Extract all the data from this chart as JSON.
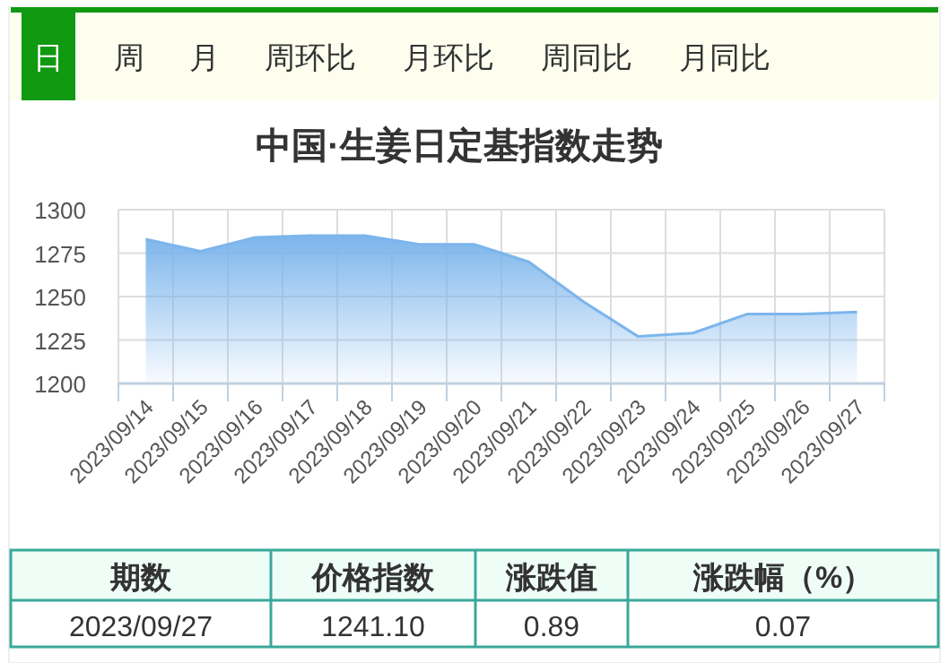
{
  "chart_data": {
    "type": "area",
    "title": "中国·生姜日定基指数走势",
    "categories": [
      "2023/09/14",
      "2023/09/15",
      "2023/09/16",
      "2023/09/17",
      "2023/09/18",
      "2023/09/19",
      "2023/09/20",
      "2023/09/21",
      "2023/09/22",
      "2023/09/23",
      "2023/09/24",
      "2023/09/25",
      "2023/09/26",
      "2023/09/27"
    ],
    "series": [
      {
        "color": "#7cb5ec",
        "values": [
          1283,
          1276,
          1284,
          1285,
          1285,
          1280,
          1280,
          1270,
          1247,
          1227,
          1229,
          1240,
          1240,
          1241.1
        ]
      }
    ],
    "ylim": [
      1200,
      1300
    ],
    "yticks": [
      1200,
      1225,
      1250,
      1275,
      1300
    ],
    "grid": true,
    "annotations": [
      "日",
      "周",
      "月",
      "周环比",
      "月环比",
      "周同比",
      "月同比",
      "期数",
      "价格指数",
      "涨跌值",
      "涨跌幅（%）",
      "2023/09/27",
      "1241.10",
      "0.89",
      "0.07"
    ]
  }
}
